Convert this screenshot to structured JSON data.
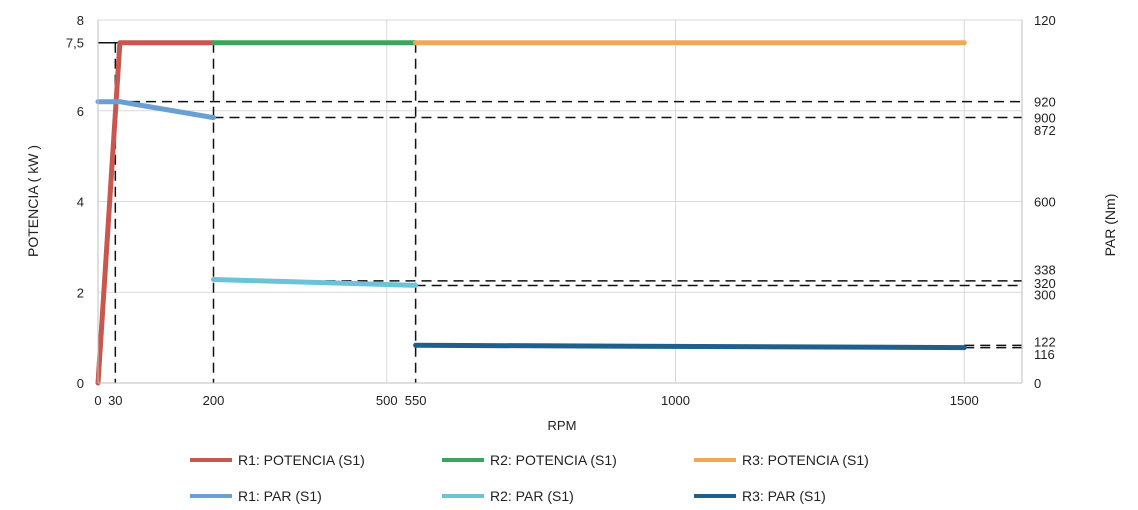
{
  "chart_data": {
    "type": "line",
    "xlabel": "RPM",
    "ylabel_left": "POTENCIA (    kW )",
    "ylabel_right": "PAR (Nm)",
    "xlim": [
      0,
      1600
    ],
    "ylim_left": [
      0,
      8
    ],
    "ylim_right": [
      0,
      120
    ],
    "grid": true,
    "legend_position": "bottom",
    "x_ticks": [
      {
        "value": 0,
        "label": "0"
      },
      {
        "value": 30,
        "label": "30"
      },
      {
        "value": 200,
        "label": "200"
      },
      {
        "value": 500,
        "label": "500"
      },
      {
        "value": 550,
        "label": "550"
      },
      {
        "value": 1000,
        "label": "1000"
      },
      {
        "value": 1500,
        "label": "1500"
      }
    ],
    "y_left_ticks": [
      {
        "value": 0,
        "label": "0"
      },
      {
        "value": 2,
        "label": "2"
      },
      {
        "value": 4,
        "label": "4"
      },
      {
        "value": 6,
        "label": "6"
      },
      {
        "value": 7.5,
        "label": "7,5"
      },
      {
        "value": 8,
        "label": "8"
      }
    ],
    "y_right_ticks": [
      {
        "value": 0,
        "label": "0"
      },
      {
        "value": 120,
        "label": "120"
      }
    ],
    "right_annotations": [
      {
        "label": "920",
        "y_left": 6.2
      },
      {
        "label": "900",
        "y_left": 5.85
      },
      {
        "label": "872",
        "y_left": 5.58
      },
      {
        "label": "600",
        "y_left": 4.0
      },
      {
        "label": "338",
        "y_left": 2.5
      },
      {
        "label": "320",
        "y_left": 2.2
      },
      {
        "label": "300",
        "y_left": 1.95
      },
      {
        "label": "122",
        "y_left": 0.92
      },
      {
        "label": "116",
        "y_left": 0.64
      }
    ],
    "series": [
      {
        "name": "R1: POTENCIA (S1)",
        "color": "#c8574f",
        "points": [
          [
            0,
            0
          ],
          [
            38,
            7.5
          ],
          [
            200,
            7.5
          ]
        ]
      },
      {
        "name": "R2: POTENCIA (S1)",
        "color": "#3ba55c",
        "points": [
          [
            200,
            7.5
          ],
          [
            550,
            7.5
          ]
        ]
      },
      {
        "name": "R3: POTENCIA (S1)",
        "color": "#f0a855",
        "points": [
          [
            550,
            7.5
          ],
          [
            1500,
            7.5
          ]
        ]
      },
      {
        "name": "R1: PAR (S1)",
        "color": "#6a9fd4",
        "points": [
          [
            0,
            6.2
          ],
          [
            38,
            6.2
          ],
          [
            200,
            5.85
          ]
        ]
      },
      {
        "name": "R2: PAR (S1)",
        "color": "#6bc3d8",
        "points": [
          [
            200,
            2.28
          ],
          [
            550,
            2.15
          ]
        ]
      },
      {
        "name": "R3: PAR (S1)",
        "color": "#1f5f8b",
        "points": [
          [
            550,
            0.83
          ],
          [
            1500,
            0.78
          ]
        ]
      }
    ],
    "reference_lines": {
      "vertical_x": [
        30,
        200,
        550
      ],
      "horizontal": [
        {
          "y": 6.2,
          "x_from": 0
        },
        {
          "y": 5.85,
          "x_from": 200
        },
        {
          "y": 2.25,
          "x_from": 200
        },
        {
          "y": 2.15,
          "x_from": 550
        },
        {
          "y": 0.83,
          "x_from": 1500
        },
        {
          "y": 0.78,
          "x_from": 1500
        }
      ]
    }
  }
}
